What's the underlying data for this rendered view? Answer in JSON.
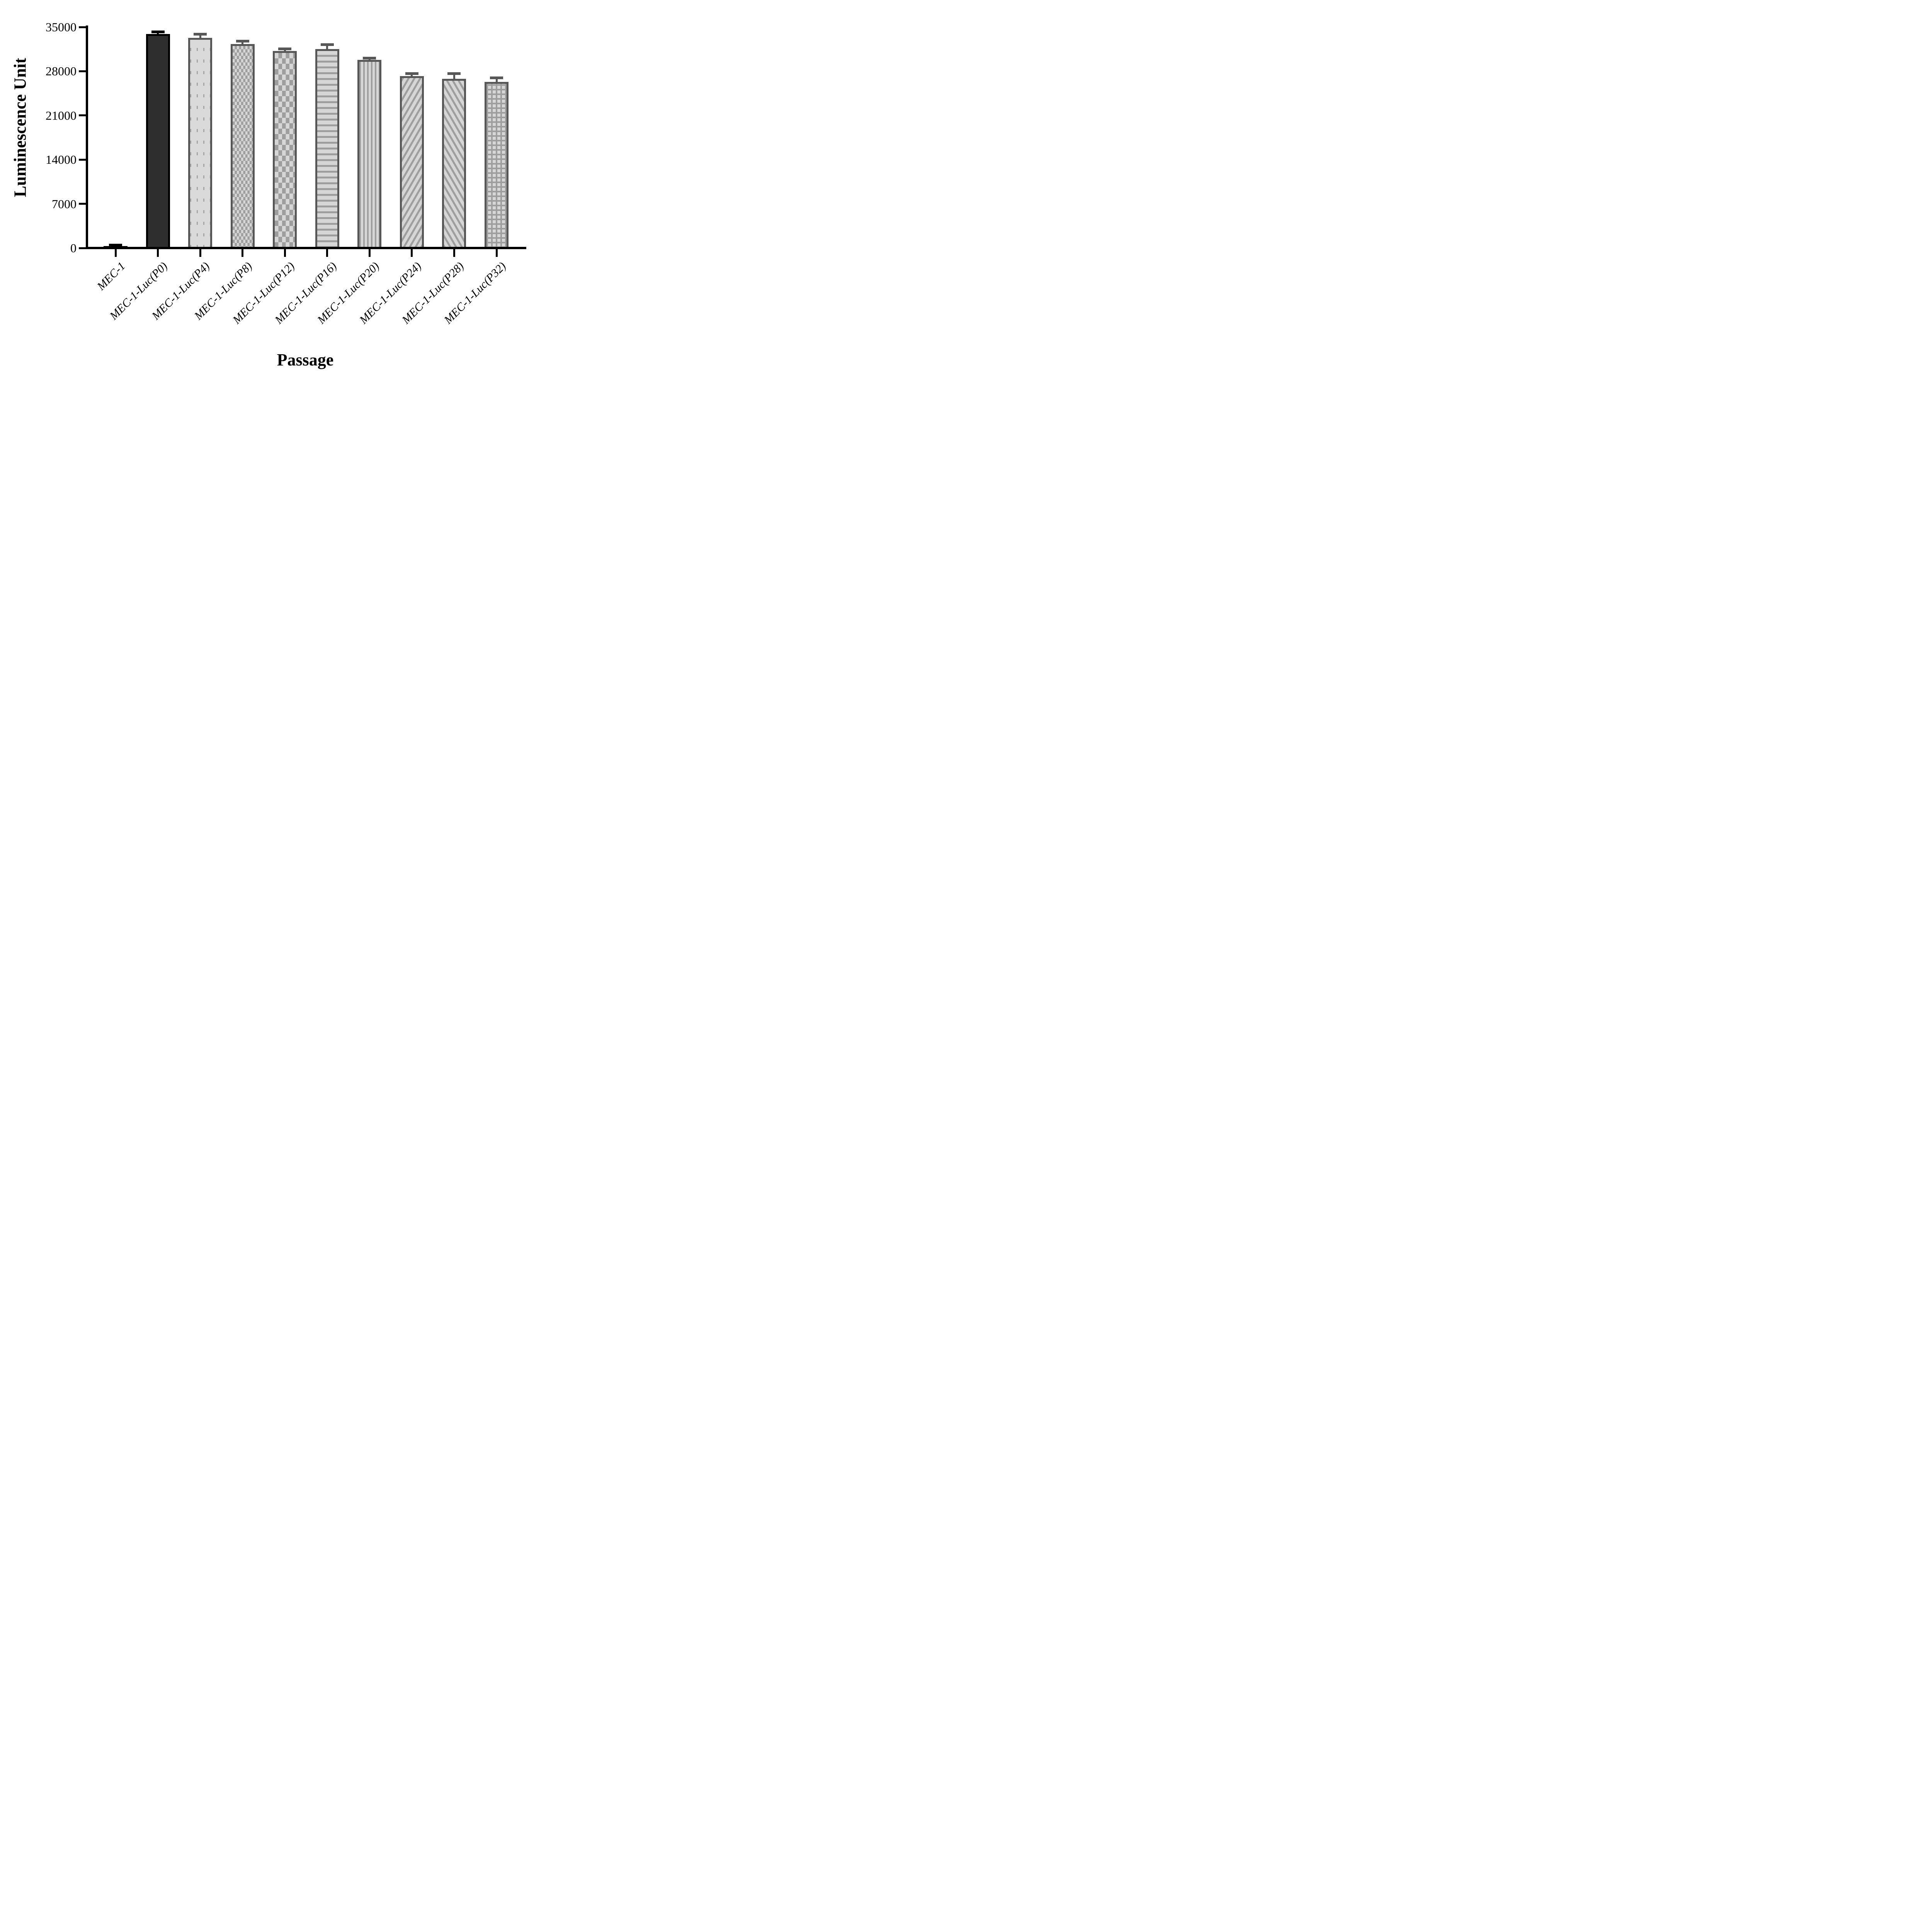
{
  "figure": {
    "background": "#ffffff",
    "y_axis_title": "Luminescence Unit",
    "x_axis_title": "Passage"
  },
  "colors": {
    "axis": "#000000",
    "bar_border": "#575757",
    "pattern_line": "#9e9e9e",
    "pattern_background": "#d6d6d6",
    "dark_bar_fill": "#2e2e2e",
    "black": "#000000"
  },
  "chart_data": {
    "type": "bar",
    "title": "",
    "xlabel": "Passage",
    "ylabel": "Luminescence Unit",
    "ylim": [
      0,
      35000
    ],
    "yticks": [
      0,
      7000,
      14000,
      21000,
      28000,
      35000
    ],
    "grid": false,
    "legend_position": "none",
    "categories": [
      "MEC-1",
      "MEC-1-Luc(P0)",
      "MEC-1-Luc(P4)",
      "MEC-1-Luc(P8)",
      "MEC-1-Luc(P12)",
      "MEC-1-Luc(P16)",
      "MEC-1-Luc(P20)",
      "MEC-1-Luc(P24)",
      "MEC-1-Luc(P28)",
      "MEC-1-Luc(P32)"
    ],
    "values": [
      300,
      33900,
      33300,
      32300,
      31200,
      31500,
      29800,
      27200,
      26800,
      26300
    ],
    "errors": [
      150,
      300,
      550,
      450,
      300,
      700,
      250,
      400,
      800,
      600
    ],
    "patterns": [
      "solid-black",
      "solid-dark",
      "dots",
      "checker-fine",
      "checker-coarse",
      "hlines",
      "vlines",
      "diag-up",
      "diag-down",
      "grid"
    ],
    "error_bar_colors": [
      "#000000",
      "#000000",
      "#575757",
      "#575757",
      "#575757",
      "#575757",
      "#575757",
      "#575757",
      "#575757",
      "#575757"
    ]
  }
}
